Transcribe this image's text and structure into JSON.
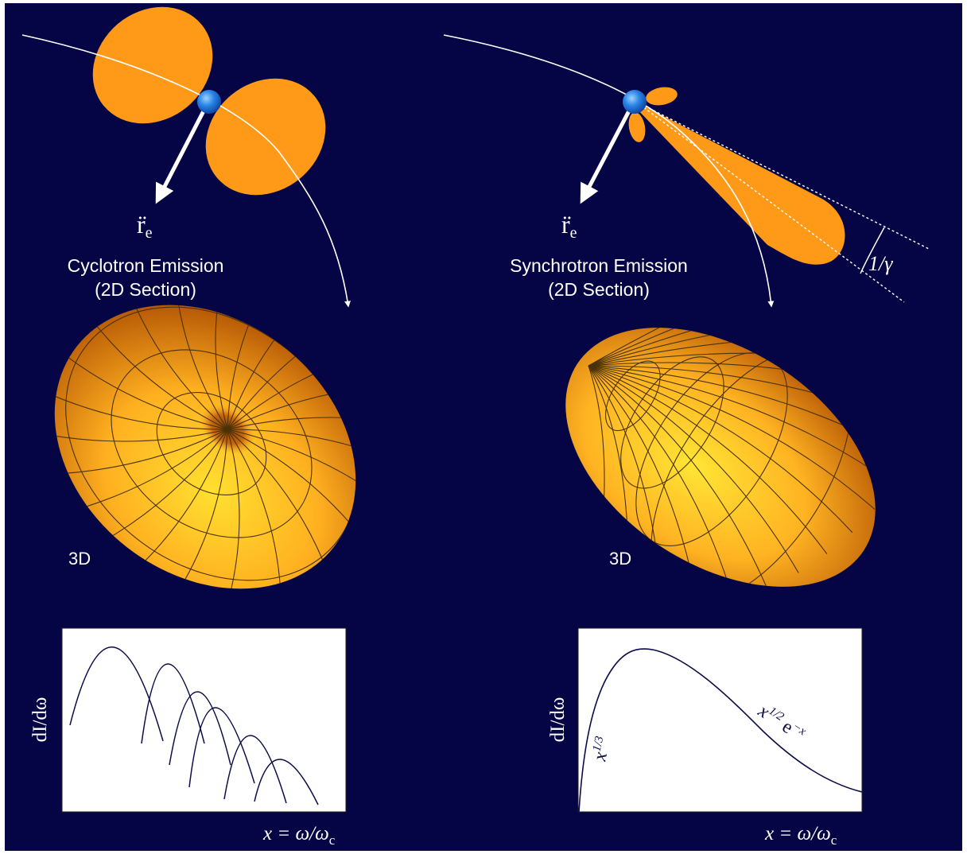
{
  "left": {
    "accel_symbol": "r̈",
    "accel_subscript": "e",
    "title_line1": "Cyclotron Emission",
    "title_line2": "(2D Section)",
    "label_3d": "3D",
    "plot": {
      "ylabel": "dI/dω",
      "xlabel": "x = ω/ω",
      "xlabel_sub": "c"
    }
  },
  "right": {
    "accel_symbol": "r̈",
    "accel_subscript": "e",
    "title_line1": "Synchrotron Emission",
    "title_line2": "(2D Section)",
    "label_3d": "3D",
    "angle_label": "1/γ",
    "plot": {
      "ylabel": "dI/dω",
      "xlabel": "x = ω/ω",
      "xlabel_sub": "c",
      "low_annotation": "x",
      "low_exponent": "1/3",
      "high_annotation_base": "x",
      "high_annotation_exp": "1/2",
      "high_annotation_tail": "e",
      "high_annotation_tail_exp": "−x"
    }
  },
  "colors": {
    "background": "#050545",
    "lobe": "#ff9a18",
    "electron": "#2a86e8",
    "curve": "#0c0c4a",
    "plot_bg": "#ffffff"
  }
}
